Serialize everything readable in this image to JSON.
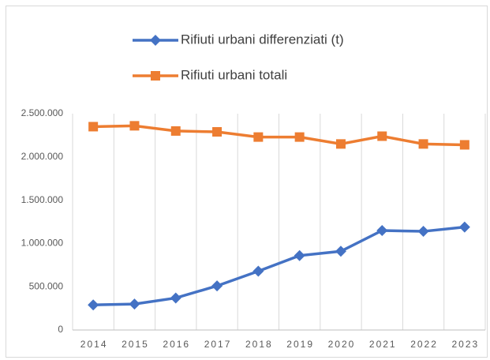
{
  "chart_data": {
    "type": "line",
    "categories": [
      "2014",
      "2015",
      "2016",
      "2017",
      "2018",
      "2019",
      "2020",
      "2021",
      "2022",
      "2023"
    ],
    "series": [
      {
        "name": "Rifiuti urbani differenziati (t)",
        "color": "#4472c4",
        "marker": "diamond",
        "values": [
          290000,
          300000,
          370000,
          510000,
          680000,
          860000,
          910000,
          1150000,
          1140000,
          1190000
        ]
      },
      {
        "name": "Rifiuti urbani totali",
        "color": "#ed7d31",
        "marker": "square",
        "values": [
          2350000,
          2360000,
          2300000,
          2290000,
          2230000,
          2230000,
          2150000,
          2240000,
          2150000,
          2140000
        ]
      }
    ],
    "ylim": [
      0,
      2500000
    ],
    "yticks": [
      0,
      {
        "value": 500000,
        "label": "500.000"
      },
      {
        "value": 1000000,
        "label": "1.000.000"
      },
      {
        "value": 1500000,
        "label": "1.500.000"
      },
      {
        "value": 2000000,
        "label": "2.000.000"
      },
      {
        "value": 2500000,
        "label": "2.500.000"
      }
    ],
    "vertical_grid": true,
    "legend_position": "top"
  }
}
